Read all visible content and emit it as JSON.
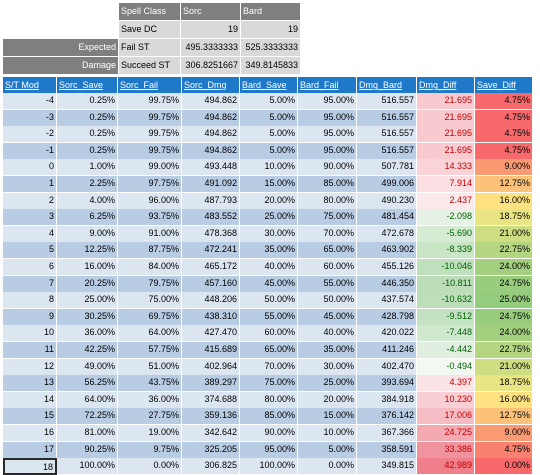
{
  "top_block": {
    "header": [
      "Spell Class",
      "Sorc",
      "Bard"
    ],
    "save_dc": {
      "label": "Save DC",
      "sorc": "19",
      "bard": "19"
    },
    "expected_label": "Expected",
    "damage_label": "Damage",
    "fail": {
      "label": "Fail ST",
      "sorc": "495.3333333",
      "bard": "525.3333333"
    },
    "succeed": {
      "label": "Succeed ST",
      "sorc": "306.8251667",
      "bard": "349.8145833"
    }
  },
  "table": {
    "headers": [
      "S/T Mod",
      "Sorc_Save",
      "Sorc_Fail",
      "Sorc_Dmg",
      "Bard_Save",
      "Bard_Fail",
      "Dmg_Bard",
      "Dmg_Diff",
      "Save_Diff"
    ],
    "rows": [
      [
        "-4",
        "0.25%",
        "99.75%",
        "494.862",
        "5.00%",
        "95.00%",
        "516.557",
        "21.695",
        "4.75%"
      ],
      [
        "-3",
        "0.25%",
        "99.75%",
        "494.862",
        "5.00%",
        "95.00%",
        "516.557",
        "21.695",
        "4.75%"
      ],
      [
        "-2",
        "0.25%",
        "99.75%",
        "494.862",
        "5.00%",
        "95.00%",
        "516.557",
        "21.695",
        "4.75%"
      ],
      [
        "-1",
        "0.25%",
        "99.75%",
        "494.862",
        "5.00%",
        "95.00%",
        "516.557",
        "21.695",
        "4.75%"
      ],
      [
        "0",
        "1.00%",
        "99.00%",
        "493.448",
        "10.00%",
        "90.00%",
        "507.781",
        "14.333",
        "9.00%"
      ],
      [
        "1",
        "2.25%",
        "97.75%",
        "491.092",
        "15.00%",
        "85.00%",
        "499.006",
        "7.914",
        "12.75%"
      ],
      [
        "2",
        "4.00%",
        "96.00%",
        "487.793",
        "20.00%",
        "80.00%",
        "490.230",
        "2.437",
        "16.00%"
      ],
      [
        "3",
        "6.25%",
        "93.75%",
        "483.552",
        "25.00%",
        "75.00%",
        "481.454",
        "-2.098",
        "18.75%"
      ],
      [
        "4",
        "9.00%",
        "91.00%",
        "478.368",
        "30.00%",
        "70.00%",
        "472.678",
        "-5.690",
        "21.00%"
      ],
      [
        "5",
        "12.25%",
        "87.75%",
        "472.241",
        "35.00%",
        "65.00%",
        "463.902",
        "-8.339",
        "22.75%"
      ],
      [
        "6",
        "16.00%",
        "84.00%",
        "465.172",
        "40.00%",
        "60.00%",
        "455.126",
        "-10.046",
        "24.00%"
      ],
      [
        "7",
        "20.25%",
        "79.75%",
        "457.160",
        "45.00%",
        "55.00%",
        "446.350",
        "-10.811",
        "24.75%"
      ],
      [
        "8",
        "25.00%",
        "75.00%",
        "448.206",
        "50.00%",
        "50.00%",
        "437.574",
        "-10.632",
        "25.00%"
      ],
      [
        "9",
        "30.25%",
        "69.75%",
        "438.310",
        "55.00%",
        "45.00%",
        "428.798",
        "-9.512",
        "24.75%"
      ],
      [
        "10",
        "36.00%",
        "64.00%",
        "427.470",
        "60.00%",
        "40.00%",
        "420.022",
        "-7.448",
        "24.00%"
      ],
      [
        "11",
        "42.25%",
        "57.75%",
        "415.689",
        "65.00%",
        "35.00%",
        "411.246",
        "-4.442",
        "22.75%"
      ],
      [
        "12",
        "49.00%",
        "51.00%",
        "402.964",
        "70.00%",
        "30.00%",
        "402.470",
        "-0.494",
        "21.00%"
      ],
      [
        "13",
        "56.25%",
        "43.75%",
        "389.297",
        "75.00%",
        "25.00%",
        "393.694",
        "4.397",
        "18.75%"
      ],
      [
        "14",
        "64.00%",
        "36.00%",
        "374.688",
        "80.00%",
        "20.00%",
        "384.918",
        "10.230",
        "16.00%"
      ],
      [
        "15",
        "72.25%",
        "27.75%",
        "359.136",
        "85.00%",
        "15.00%",
        "376.142",
        "17.006",
        "12.75%"
      ],
      [
        "16",
        "81.00%",
        "19.00%",
        "342.642",
        "90.00%",
        "10.00%",
        "367.366",
        "24.725",
        "9.00%"
      ],
      [
        "17",
        "90.25%",
        "9.75%",
        "325.205",
        "95.00%",
        "5.00%",
        "358.591",
        "33.386",
        "4.75%"
      ],
      [
        "18",
        "100.00%",
        "0.00%",
        "306.825",
        "100.00%",
        "0.00%",
        "349.815",
        "42.989",
        "0.00%"
      ]
    ],
    "dmg_diff_colors": [
      "#f8c9cf",
      "#f8c9cf",
      "#f8c9cf",
      "#f8c9cf",
      "#f9d3d8",
      "#fbdfe2",
      "#fce9eb",
      "#e6f2e6",
      "#d5ebd4",
      "#c8e5c6",
      "#bfe0bd",
      "#bbdeb9",
      "#bcdfba",
      "#c3e2c1",
      "#d0e8ce",
      "#e0efdf",
      "#f3f8f2",
      "#fbe2e4",
      "#f8cfd4",
      "#f6bcc3",
      "#f4a8b1",
      "#f1939e",
      "#ef7f8b"
    ],
    "save_diff_colors": [
      "#f8696b",
      "#f8696b",
      "#f8696b",
      "#f8696b",
      "#fa9a73",
      "#fcc27a",
      "#fee282",
      "#e9e583",
      "#cddd82",
      "#b5d680",
      "#a2d07f",
      "#98cd7e",
      "#94cc7d",
      "#98cd7e",
      "#a2d07f",
      "#b5d680",
      "#cddd82",
      "#e9e583",
      "#fee282",
      "#fcc27a",
      "#fa9a73",
      "#f9816f",
      "#f8696b"
    ]
  }
}
